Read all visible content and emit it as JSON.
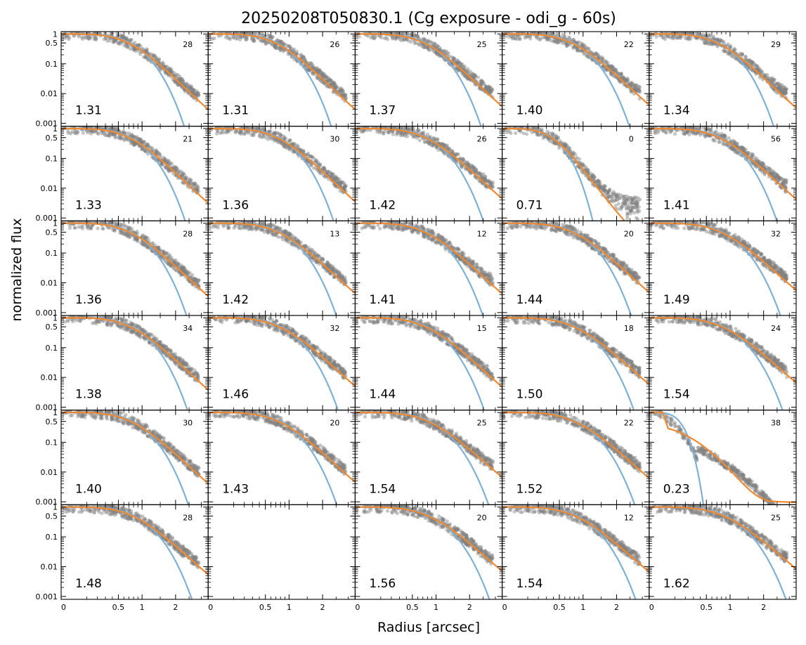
{
  "figure": {
    "title": "20250208T050830.1 (Cg exposure - odi_g - 60s)",
    "xlabel": "Radius [arcsec]",
    "ylabel": "normalized flux"
  },
  "chart_data": {
    "type": "scatter",
    "grid_rows": 6,
    "grid_cols": 5,
    "xscale": "sqrt",
    "yscale": "log",
    "xlim": [
      0,
      3.3
    ],
    "ylim": [
      0.0008,
      1.2
    ],
    "xticks": [
      0,
      0.5,
      1,
      2
    ],
    "xtick_labels": [
      "0",
      "0.5",
      "1",
      "2"
    ],
    "yticks": [
      1,
      0.5,
      0.1,
      0.01,
      0.001
    ],
    "ytick_labels": [
      "1",
      "0.5",
      "0.1",
      "0.01",
      "0.001"
    ],
    "colors": {
      "points": "#808080",
      "fit_a": "#7fb0d5",
      "fit_b": "#f0892f"
    },
    "panels": [
      {
        "row": 0,
        "col": 0,
        "fwhm": "1.31",
        "count": "28"
      },
      {
        "row": 0,
        "col": 1,
        "fwhm": "1.31",
        "count": "26"
      },
      {
        "row": 0,
        "col": 2,
        "fwhm": "1.37",
        "count": "25"
      },
      {
        "row": 0,
        "col": 3,
        "fwhm": "1.40",
        "count": "22"
      },
      {
        "row": 0,
        "col": 4,
        "fwhm": "1.34",
        "count": "29"
      },
      {
        "row": 1,
        "col": 0,
        "fwhm": "1.33",
        "count": "21"
      },
      {
        "row": 1,
        "col": 1,
        "fwhm": "1.36",
        "count": "30"
      },
      {
        "row": 1,
        "col": 2,
        "fwhm": "1.42",
        "count": "26"
      },
      {
        "row": 1,
        "col": 3,
        "fwhm": "0.71",
        "count": "0"
      },
      {
        "row": 1,
        "col": 4,
        "fwhm": "1.41",
        "count": "56"
      },
      {
        "row": 2,
        "col": 0,
        "fwhm": "1.36",
        "count": "28"
      },
      {
        "row": 2,
        "col": 1,
        "fwhm": "1.42",
        "count": "13"
      },
      {
        "row": 2,
        "col": 2,
        "fwhm": "1.41",
        "count": "12"
      },
      {
        "row": 2,
        "col": 3,
        "fwhm": "1.44",
        "count": "20"
      },
      {
        "row": 2,
        "col": 4,
        "fwhm": "1.49",
        "count": "32"
      },
      {
        "row": 3,
        "col": 0,
        "fwhm": "1.38",
        "count": "34"
      },
      {
        "row": 3,
        "col": 1,
        "fwhm": "1.46",
        "count": "32"
      },
      {
        "row": 3,
        "col": 2,
        "fwhm": "1.44",
        "count": "15"
      },
      {
        "row": 3,
        "col": 3,
        "fwhm": "1.50",
        "count": "18"
      },
      {
        "row": 3,
        "col": 4,
        "fwhm": "1.54",
        "count": "24"
      },
      {
        "row": 4,
        "col": 0,
        "fwhm": "1.40",
        "count": "30"
      },
      {
        "row": 4,
        "col": 1,
        "fwhm": "1.43",
        "count": "20"
      },
      {
        "row": 4,
        "col": 2,
        "fwhm": "1.54",
        "count": "25"
      },
      {
        "row": 4,
        "col": 3,
        "fwhm": "1.52",
        "count": "22"
      },
      {
        "row": 4,
        "col": 4,
        "fwhm": "0.23",
        "count": "38"
      },
      {
        "row": 5,
        "col": 0,
        "fwhm": "1.48",
        "count": "28"
      },
      {
        "row": 5,
        "col": 1,
        "fwhm": "",
        "count": ""
      },
      {
        "row": 5,
        "col": 2,
        "fwhm": "1.56",
        "count": "20"
      },
      {
        "row": 5,
        "col": 3,
        "fwhm": "1.54",
        "count": "12"
      },
      {
        "row": 5,
        "col": 4,
        "fwhm": "1.62",
        "count": "25"
      }
    ]
  }
}
